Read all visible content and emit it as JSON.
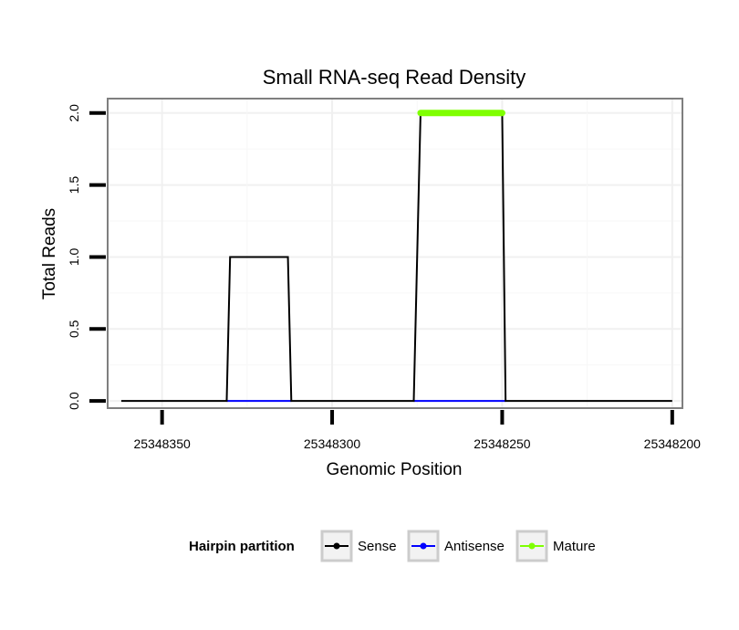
{
  "chart_data": {
    "type": "line",
    "title": "Small RNA-seq Read Density",
    "xlabel": "Genomic Position",
    "ylabel": "Total Reads",
    "xlim": [
      25348366,
      25348197
    ],
    "x_reversed": true,
    "ylim": [
      -0.05,
      2.1
    ],
    "x_ticks": [
      25348350,
      25348300,
      25348250,
      25348200
    ],
    "x_tick_labels": [
      "25348350",
      "25348300",
      "25348250",
      "25348200"
    ],
    "y_ticks": [
      0.0,
      0.5,
      1.0,
      1.5,
      2.0
    ],
    "y_tick_labels": [
      "0.0",
      "0.5",
      "1.0",
      "1.5",
      "2.0"
    ],
    "grid": true,
    "legend": {
      "title": "Hairpin partition",
      "placement": "bottom",
      "entries": [
        {
          "name": "Sense",
          "color": "#000000"
        },
        {
          "name": "Antisense",
          "color": "#0000ff"
        },
        {
          "name": "Mature",
          "color": "#7fff00"
        }
      ]
    },
    "series": [
      {
        "name": "Sense",
        "color": "#000000",
        "x": [
          25348362,
          25348331,
          25348330,
          25348313,
          25348312,
          25348276,
          25348274,
          25348250,
          25348249,
          25348200
        ],
        "y": [
          0,
          0,
          1,
          1,
          0,
          0,
          2,
          2,
          0,
          0
        ]
      },
      {
        "name": "Antisense",
        "color": "#0000ff",
        "segments": [
          {
            "x": [
              25348331,
              25348312
            ],
            "y": [
              0,
              0
            ]
          },
          {
            "x": [
              25348276,
              25348249
            ],
            "y": [
              0,
              0
            ]
          }
        ]
      },
      {
        "name": "Mature",
        "color": "#7fff00",
        "x": [
          25348274,
          25348250
        ],
        "y": [
          2,
          2
        ]
      }
    ]
  }
}
